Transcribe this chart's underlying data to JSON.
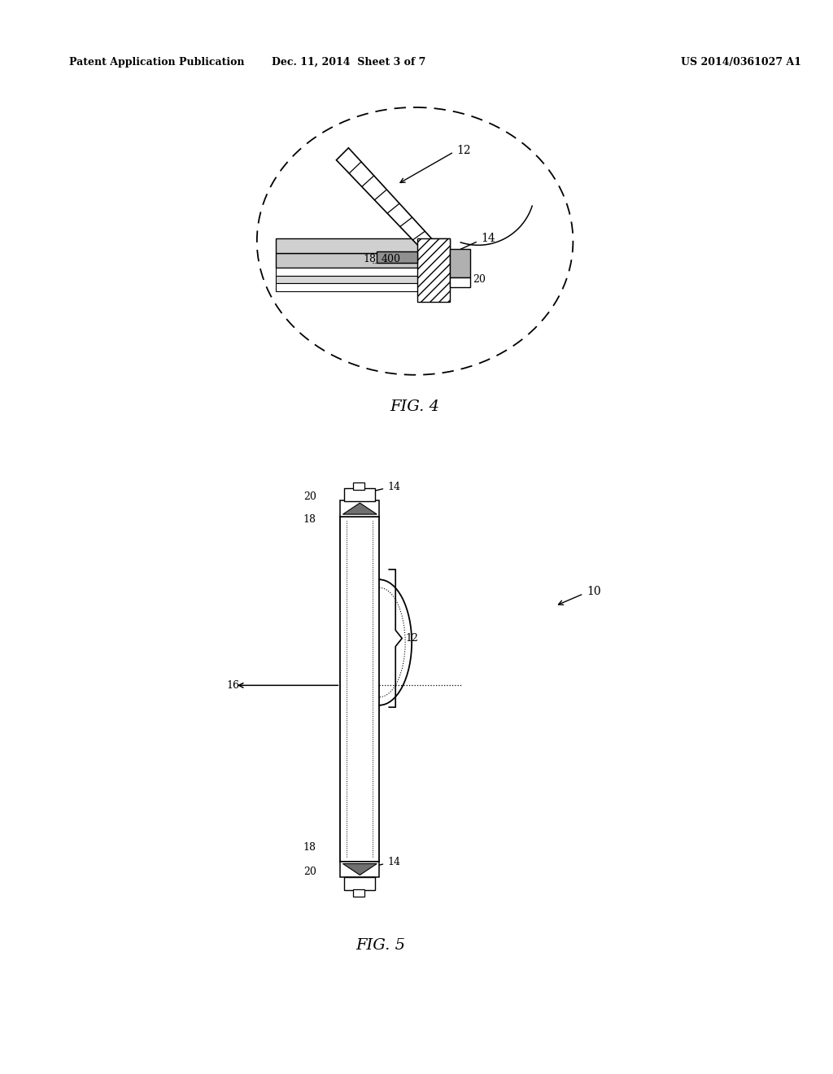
{
  "bg_color": "#ffffff",
  "header_left": "Patent Application Publication",
  "header_center": "Dec. 11, 2014  Sheet 3 of 7",
  "header_right": "US 2014/0361027 A1",
  "fig4_label": "FIG. 4",
  "fig5_label": "FIG. 5"
}
